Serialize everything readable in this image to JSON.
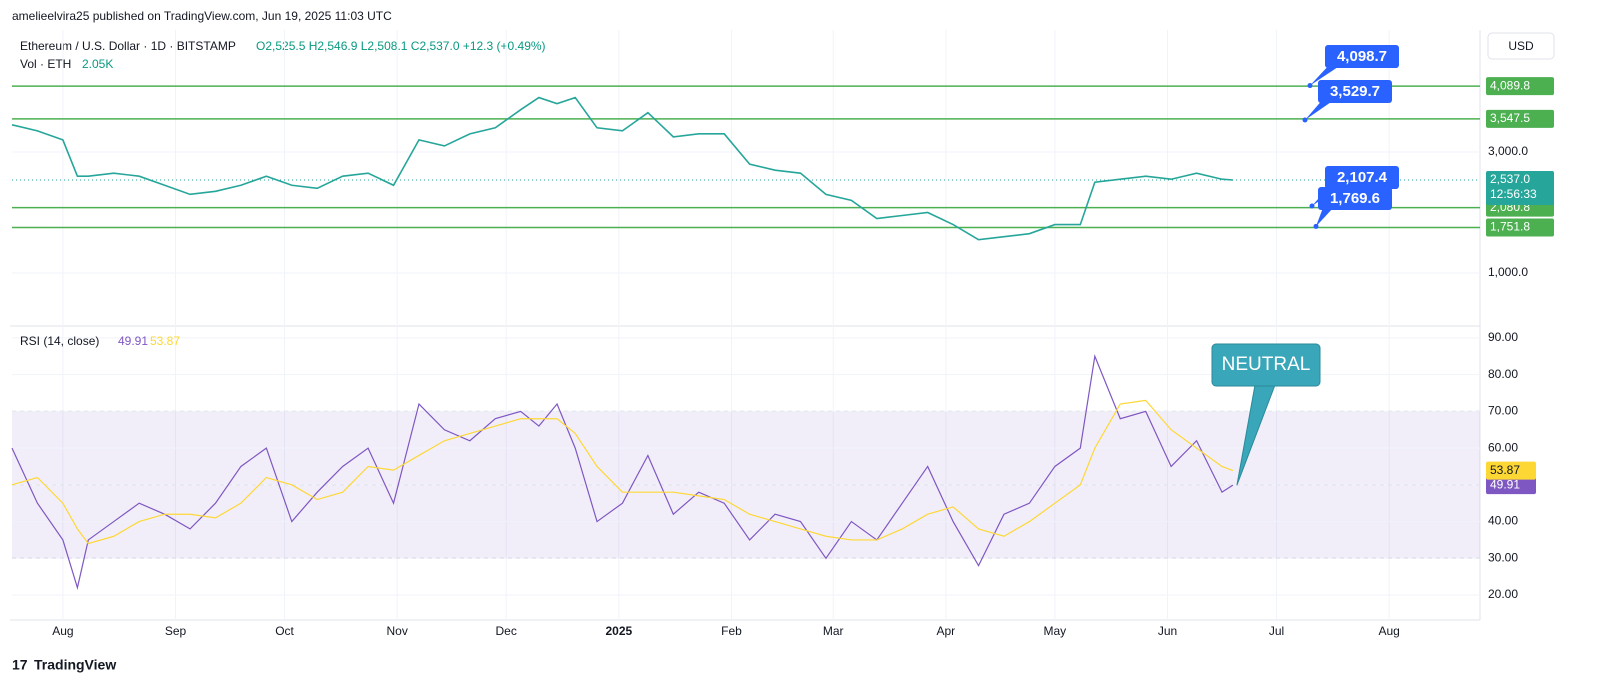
{
  "header": {
    "publisher": "amelieelvira25 published on TradingView.com, Jun 19, 2025 11:03 UTC",
    "symbol": "Ethereum / U.S. Dollar · 1D · BITSTAMP",
    "ohlc": "O2,525.5  H2,546.9  L2,508.1  C2,537.0  +12.3 (+0.49%)",
    "volume_label": "Vol · ETH",
    "volume_value": "2.05K",
    "currency": "USD",
    "brand": "TradingView"
  },
  "chart_data": [
    {
      "type": "line",
      "color": "#26a69a",
      "x": [
        0,
        7,
        14,
        18,
        21,
        28,
        35,
        42,
        49,
        56,
        63,
        70,
        77,
        84,
        91,
        98,
        105,
        112,
        119,
        126,
        133,
        140,
        145,
        150,
        155,
        161,
        168,
        175,
        182,
        189,
        196,
        203,
        210,
        217,
        224,
        231,
        238,
        245,
        252,
        259,
        266,
        273,
        280,
        287,
        294,
        298,
        305,
        312,
        319,
        326,
        333,
        336
      ],
      "values": [
        3450,
        3350,
        3200,
        2600,
        2600,
        2650,
        2600,
        2450,
        2300,
        2350,
        2450,
        2600,
        2450,
        2400,
        2600,
        2650,
        2450,
        3200,
        3100,
        3300,
        3400,
        3700,
        3900,
        3800,
        3900,
        3400,
        3350,
        3650,
        3250,
        3300,
        3300,
        2800,
        2700,
        2650,
        2300,
        2200,
        1900,
        1950,
        2000,
        1800,
        1550,
        1600,
        1650,
        1800,
        1800,
        2500,
        2550,
        2600,
        2550,
        2650,
        2550,
        2537
      ],
      "ylim": [
        140,
        5017
      ],
      "yticks": [
        {
          "value": 1000,
          "label": "1,000.0"
        },
        {
          "value": 3000,
          "label": "3,000.0"
        }
      ],
      "levels": [
        {
          "value": 4089.8,
          "label": "4,089.8"
        },
        {
          "value": 3547.5,
          "label": "3,547.5"
        },
        {
          "value": 2080.8,
          "label": "2,080.8"
        },
        {
          "value": 1751.8,
          "label": "1,751.8"
        }
      ],
      "level_color": "#4caf50",
      "last_price": {
        "value": 2537.0,
        "label": "2,537.0"
      },
      "countdown": "12:56:33",
      "annotations": [
        {
          "value": 4098.7,
          "label": "4,098.7"
        },
        {
          "value": 3529.7,
          "label": "3,529.7"
        },
        {
          "value": 2107.4,
          "label": "2,107.4"
        },
        {
          "value": 1769.6,
          "label": "1,769.6"
        }
      ],
      "annotation_color": "#2962ff"
    },
    {
      "type": "line",
      "title": "RSI (14, close)",
      "x": [
        0,
        7,
        14,
        18,
        21,
        28,
        35,
        42,
        49,
        56,
        63,
        70,
        77,
        84,
        91,
        98,
        105,
        112,
        119,
        126,
        133,
        140,
        145,
        150,
        155,
        161,
        168,
        175,
        182,
        189,
        196,
        203,
        210,
        217,
        224,
        231,
        238,
        245,
        252,
        259,
        266,
        273,
        280,
        287,
        294,
        298,
        305,
        312,
        319,
        326,
        333,
        336
      ],
      "series": [
        {
          "color": "#7e57c2",
          "values": [
            60,
            45,
            35,
            22,
            35,
            40,
            45,
            42,
            38,
            45,
            55,
            60,
            40,
            48,
            55,
            60,
            45,
            72,
            65,
            62,
            68,
            70,
            66,
            72,
            60,
            40,
            45,
            58,
            42,
            48,
            45,
            35,
            42,
            40,
            30,
            40,
            35,
            45,
            55,
            40,
            28,
            42,
            45,
            55,
            60,
            85,
            68,
            70,
            55,
            62,
            48,
            49.91
          ]
        },
        {
          "color": "#fdd835",
          "values": [
            50,
            52,
            45,
            38,
            34,
            36,
            40,
            42,
            42,
            41,
            45,
            52,
            50,
            46,
            48,
            55,
            54,
            58,
            62,
            64,
            66,
            68,
            68,
            68,
            64,
            55,
            48,
            48,
            48,
            47,
            46,
            42,
            40,
            38,
            36,
            35,
            35,
            38,
            42,
            44,
            38,
            36,
            40,
            45,
            50,
            60,
            72,
            73,
            65,
            60,
            55,
            53.87
          ]
        }
      ],
      "ylim": [
        13.2,
        92.7
      ],
      "yticks": [
        {
          "value": 20,
          "label": "20.00"
        },
        {
          "value": 30,
          "label": "30.00"
        },
        {
          "value": 40,
          "label": "40.00"
        },
        {
          "value": 50,
          "label": "50.00"
        },
        {
          "value": 60,
          "label": "60.00"
        },
        {
          "value": 70,
          "label": "70.00"
        },
        {
          "value": 80,
          "label": "80.00"
        },
        {
          "value": 90,
          "label": "90.00"
        }
      ],
      "band": [
        30,
        70
      ],
      "midline": 50,
      "annotation": "NEUTRAL",
      "xlim": [
        0,
        404
      ],
      "xticks": [
        {
          "value": 14,
          "label": "Aug"
        },
        {
          "value": 45,
          "label": "Sep"
        },
        {
          "value": 75,
          "label": "Oct"
        },
        {
          "value": 106,
          "label": "Nov"
        },
        {
          "value": 136,
          "label": "Dec"
        },
        {
          "value": 167,
          "label": "2025"
        },
        {
          "value": 198,
          "label": "Feb"
        },
        {
          "value": 226,
          "label": "Mar"
        },
        {
          "value": 257,
          "label": "Apr"
        },
        {
          "value": 287,
          "label": "May"
        },
        {
          "value": 318,
          "label": "Jun"
        },
        {
          "value": 348,
          "label": "Jul"
        },
        {
          "value": 379,
          "label": "Aug"
        }
      ]
    }
  ]
}
